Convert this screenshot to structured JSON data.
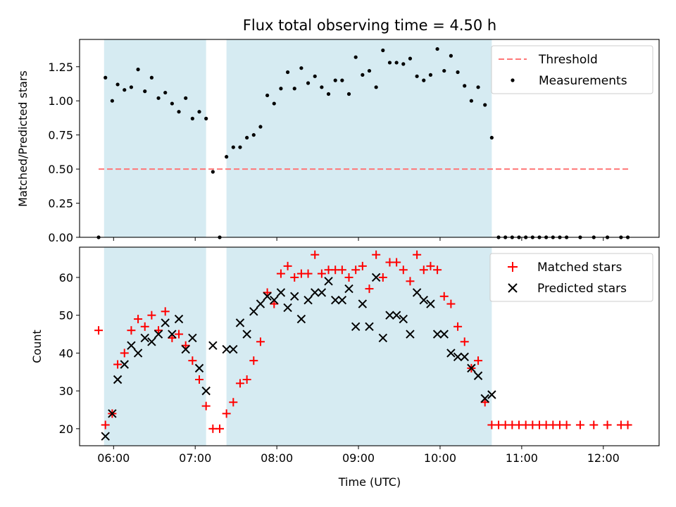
{
  "title": "Flux total observing time = 4.50 h",
  "colors": {
    "threshold": "#ff7777",
    "measurements": "#000000",
    "matched": "#ff0000",
    "predicted": "#000000",
    "span_fill": "#add8e6"
  },
  "chart_data": [
    {
      "type": "scatter",
      "ylabel": "Matched/Predicted stars",
      "xlim": [
        "05:35",
        "12:41"
      ],
      "ylim": [
        0,
        1.45
      ],
      "yticks": [
        "0.00",
        "0.25",
        "0.50",
        "0.75",
        "1.00",
        "1.25"
      ],
      "ytick_values": [
        0,
        0.25,
        0.5,
        0.75,
        1.0,
        1.25
      ],
      "grid": false,
      "legend_position": "top-right",
      "legend": [
        "Threshold",
        "Measurements"
      ],
      "spans": [
        {
          "start": "05:53",
          "end": "07:08"
        },
        {
          "start": "07:23",
          "end": "10:38"
        }
      ],
      "threshold": {
        "name": "Threshold",
        "value": 0.5,
        "x_start": "05:49",
        "x_end": "12:19"
      },
      "series": [
        {
          "name": "Measurements",
          "points": [
            [
              "05:49",
              0.0
            ],
            [
              "05:54",
              1.17
            ],
            [
              "05:59",
              1.0
            ],
            [
              "06:03",
              1.12
            ],
            [
              "06:08",
              1.08
            ],
            [
              "06:13",
              1.1
            ],
            [
              "06:18",
              1.23
            ],
            [
              "06:23",
              1.07
            ],
            [
              "06:28",
              1.17
            ],
            [
              "06:33",
              1.02
            ],
            [
              "06:38",
              1.06
            ],
            [
              "06:43",
              0.98
            ],
            [
              "06:48",
              0.92
            ],
            [
              "06:53",
              1.02
            ],
            [
              "06:58",
              0.87
            ],
            [
              "07:03",
              0.92
            ],
            [
              "07:08",
              0.87
            ],
            [
              "07:13",
              0.48
            ],
            [
              "07:18",
              0.0
            ],
            [
              "07:23",
              0.59
            ],
            [
              "07:28",
              0.66
            ],
            [
              "07:33",
              0.66
            ],
            [
              "07:38",
              0.73
            ],
            [
              "07:43",
              0.75
            ],
            [
              "07:48",
              0.81
            ],
            [
              "07:53",
              1.04
            ],
            [
              "07:58",
              0.98
            ],
            [
              "08:03",
              1.09
            ],
            [
              "08:08",
              1.21
            ],
            [
              "08:13",
              1.09
            ],
            [
              "08:18",
              1.24
            ],
            [
              "08:23",
              1.13
            ],
            [
              "08:28",
              1.18
            ],
            [
              "08:33",
              1.1
            ],
            [
              "08:38",
              1.05
            ],
            [
              "08:43",
              1.15
            ],
            [
              "08:48",
              1.15
            ],
            [
              "08:53",
              1.05
            ],
            [
              "08:58",
              1.32
            ],
            [
              "09:03",
              1.19
            ],
            [
              "09:08",
              1.22
            ],
            [
              "09:13",
              1.1
            ],
            [
              "09:18",
              1.37
            ],
            [
              "09:23",
              1.28
            ],
            [
              "09:28",
              1.28
            ],
            [
              "09:33",
              1.27
            ],
            [
              "09:38",
              1.31
            ],
            [
              "09:43",
              1.18
            ],
            [
              "09:48",
              1.15
            ],
            [
              "09:53",
              1.19
            ],
            [
              "09:58",
              1.38
            ],
            [
              "10:03",
              1.22
            ],
            [
              "10:08",
              1.33
            ],
            [
              "10:13",
              1.21
            ],
            [
              "10:18",
              1.11
            ],
            [
              "10:23",
              1.0
            ],
            [
              "10:28",
              1.1
            ],
            [
              "10:33",
              0.97
            ],
            [
              "10:38",
              0.73
            ],
            [
              "10:43",
              0.0
            ],
            [
              "10:48",
              0.0
            ],
            [
              "10:53",
              0.0
            ],
            [
              "10:58",
              0.0
            ],
            [
              "11:03",
              0.0
            ],
            [
              "11:08",
              0.0
            ],
            [
              "11:13",
              0.0
            ],
            [
              "11:18",
              0.0
            ],
            [
              "11:23",
              0.0
            ],
            [
              "11:28",
              0.0
            ],
            [
              "11:33",
              0.0
            ],
            [
              "11:43",
              0.0
            ],
            [
              "11:53",
              0.0
            ],
            [
              "12:03",
              0.0
            ],
            [
              "12:13",
              0.0
            ],
            [
              "12:18",
              0.0
            ]
          ]
        }
      ]
    },
    {
      "type": "scatter",
      "xlabel": "Time (UTC)",
      "ylabel": "Count",
      "xlim": [
        "05:35",
        "12:41"
      ],
      "ylim": [
        15.5,
        68
      ],
      "xticks": [
        "06:00",
        "07:00",
        "08:00",
        "09:00",
        "10:00",
        "11:00",
        "12:00"
      ],
      "yticks": [
        "20",
        "30",
        "40",
        "50",
        "60"
      ],
      "ytick_values": [
        20,
        30,
        40,
        50,
        60
      ],
      "grid": false,
      "legend_position": "top-right",
      "legend": [
        "Matched stars",
        "Predicted stars"
      ],
      "spans": [
        {
          "start": "05:53",
          "end": "07:08"
        },
        {
          "start": "07:23",
          "end": "10:38"
        }
      ],
      "series": [
        {
          "name": "Matched stars",
          "marker": "plus",
          "points": [
            [
              "05:49",
              46
            ],
            [
              "05:54",
              21
            ],
            [
              "05:59",
              24
            ],
            [
              "06:03",
              37
            ],
            [
              "06:08",
              40
            ],
            [
              "06:13",
              46
            ],
            [
              "06:18",
              49
            ],
            [
              "06:23",
              47
            ],
            [
              "06:28",
              50
            ],
            [
              "06:33",
              46
            ],
            [
              "06:38",
              51
            ],
            [
              "06:43",
              44
            ],
            [
              "06:48",
              45
            ],
            [
              "06:53",
              42
            ],
            [
              "06:58",
              38
            ],
            [
              "07:03",
              33
            ],
            [
              "07:08",
              26
            ],
            [
              "07:13",
              20
            ],
            [
              "07:18",
              20
            ],
            [
              "07:23",
              24
            ],
            [
              "07:28",
              27
            ],
            [
              "07:33",
              32
            ],
            [
              "07:38",
              33
            ],
            [
              "07:43",
              38
            ],
            [
              "07:48",
              43
            ],
            [
              "07:53",
              56
            ],
            [
              "07:58",
              53
            ],
            [
              "08:03",
              61
            ],
            [
              "08:08",
              63
            ],
            [
              "08:13",
              60
            ],
            [
              "08:18",
              61
            ],
            [
              "08:23",
              61
            ],
            [
              "08:28",
              66
            ],
            [
              "08:33",
              61
            ],
            [
              "08:38",
              62
            ],
            [
              "08:43",
              62
            ],
            [
              "08:48",
              62
            ],
            [
              "08:53",
              60
            ],
            [
              "08:58",
              62
            ],
            [
              "09:03",
              63
            ],
            [
              "09:08",
              57
            ],
            [
              "09:13",
              66
            ],
            [
              "09:18",
              60
            ],
            [
              "09:23",
              64
            ],
            [
              "09:28",
              64
            ],
            [
              "09:33",
              62
            ],
            [
              "09:38",
              59
            ],
            [
              "09:43",
              66
            ],
            [
              "09:48",
              62
            ],
            [
              "09:53",
              63
            ],
            [
              "09:58",
              62
            ],
            [
              "10:03",
              55
            ],
            [
              "10:08",
              53
            ],
            [
              "10:13",
              47
            ],
            [
              "10:18",
              43
            ],
            [
              "10:23",
              36
            ],
            [
              "10:28",
              38
            ],
            [
              "10:33",
              27
            ],
            [
              "10:38",
              21
            ],
            [
              "10:43",
              21
            ],
            [
              "10:48",
              21
            ],
            [
              "10:53",
              21
            ],
            [
              "10:58",
              21
            ],
            [
              "11:03",
              21
            ],
            [
              "11:08",
              21
            ],
            [
              "11:13",
              21
            ],
            [
              "11:18",
              21
            ],
            [
              "11:23",
              21
            ],
            [
              "11:28",
              21
            ],
            [
              "11:33",
              21
            ],
            [
              "11:43",
              21
            ],
            [
              "11:53",
              21
            ],
            [
              "12:03",
              21
            ],
            [
              "12:13",
              21
            ],
            [
              "12:18",
              21
            ]
          ]
        },
        {
          "name": "Predicted stars",
          "marker": "x",
          "points": [
            [
              "05:54",
              18
            ],
            [
              "05:59",
              24
            ],
            [
              "06:03",
              33
            ],
            [
              "06:08",
              37
            ],
            [
              "06:13",
              42
            ],
            [
              "06:18",
              40
            ],
            [
              "06:23",
              44
            ],
            [
              "06:28",
              43
            ],
            [
              "06:33",
              45
            ],
            [
              "06:38",
              48
            ],
            [
              "06:43",
              45
            ],
            [
              "06:48",
              49
            ],
            [
              "06:53",
              41
            ],
            [
              "06:58",
              44
            ],
            [
              "07:03",
              36
            ],
            [
              "07:08",
              30
            ],
            [
              "07:13",
              42
            ],
            [
              "07:23",
              41
            ],
            [
              "07:28",
              41
            ],
            [
              "07:33",
              48
            ],
            [
              "07:38",
              45
            ],
            [
              "07:43",
              51
            ],
            [
              "07:48",
              53
            ],
            [
              "07:53",
              55
            ],
            [
              "07:58",
              54
            ],
            [
              "08:03",
              56
            ],
            [
              "08:08",
              52
            ],
            [
              "08:13",
              55
            ],
            [
              "08:18",
              49
            ],
            [
              "08:23",
              54
            ],
            [
              "08:28",
              56
            ],
            [
              "08:33",
              56
            ],
            [
              "08:38",
              59
            ],
            [
              "08:43",
              54
            ],
            [
              "08:48",
              54
            ],
            [
              "08:53",
              57
            ],
            [
              "08:58",
              47
            ],
            [
              "09:03",
              53
            ],
            [
              "09:08",
              47
            ],
            [
              "09:13",
              60
            ],
            [
              "09:18",
              44
            ],
            [
              "09:23",
              50
            ],
            [
              "09:28",
              50
            ],
            [
              "09:33",
              49
            ],
            [
              "09:38",
              45
            ],
            [
              "09:43",
              56
            ],
            [
              "09:48",
              54
            ],
            [
              "09:53",
              53
            ],
            [
              "09:58",
              45
            ],
            [
              "10:03",
              45
            ],
            [
              "10:08",
              40
            ],
            [
              "10:13",
              39
            ],
            [
              "10:18",
              39
            ],
            [
              "10:23",
              36
            ],
            [
              "10:28",
              34
            ],
            [
              "10:33",
              28
            ],
            [
              "10:38",
              29
            ]
          ]
        }
      ]
    }
  ]
}
